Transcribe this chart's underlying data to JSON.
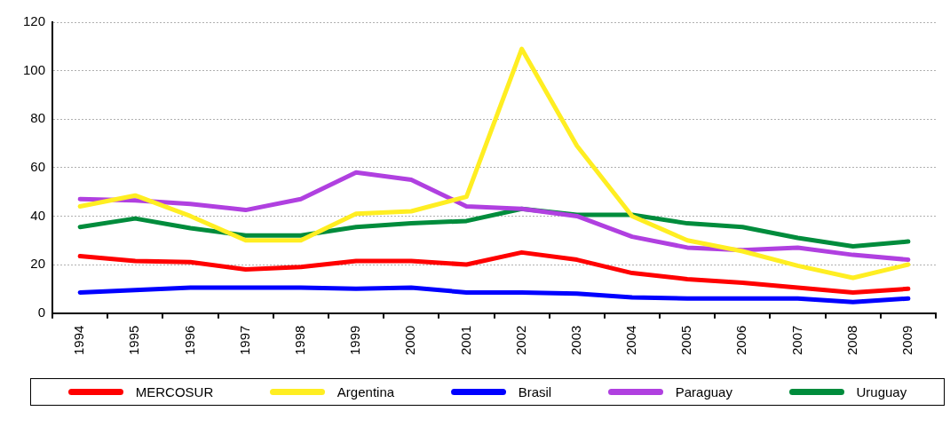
{
  "chart_data": {
    "type": "line",
    "categories": [
      "1994",
      "1995",
      "1996",
      "1997",
      "1998",
      "1999",
      "2000",
      "2001",
      "2002",
      "2003",
      "2004",
      "2005",
      "2006",
      "2007",
      "2008",
      "2009"
    ],
    "series": [
      {
        "name": "MERCOSUR",
        "color": "#ff0000",
        "values": [
          23.5,
          21.5,
          21,
          18,
          19,
          21.5,
          21.5,
          20,
          25,
          22,
          16.5,
          14,
          12.5,
          10.5,
          8.5,
          10
        ]
      },
      {
        "name": "Argentina",
        "color": "#ffee22",
        "values": [
          44,
          48.5,
          40,
          30,
          30,
          41,
          42,
          48,
          109,
          69,
          40,
          30,
          25.5,
          19.5,
          14.5,
          20
        ]
      },
      {
        "name": "Brasil",
        "color": "#0000ff",
        "values": [
          8.5,
          9.5,
          10.5,
          10.5,
          10.5,
          10,
          10.5,
          8.5,
          8.5,
          8,
          6.5,
          6,
          6,
          6,
          4.5,
          6
        ]
      },
      {
        "name": "Paraguay",
        "color": "#b040e0",
        "values": [
          47,
          46.5,
          45,
          42.5,
          47,
          58,
          55,
          44,
          43,
          40,
          31.5,
          27,
          26,
          27,
          24,
          22
        ]
      },
      {
        "name": "Uruguay",
        "color": "#008c3c",
        "values": [
          35.5,
          39,
          35,
          32,
          32,
          35.5,
          37,
          38,
          43,
          40.5,
          40.5,
          37,
          35.5,
          31,
          27.5,
          29.5
        ]
      }
    ],
    "ylim": [
      0,
      120
    ],
    "yticks": [
      0,
      20,
      40,
      60,
      80,
      100,
      120
    ],
    "grid": "y",
    "legend": "bottom",
    "marker": "none",
    "line_style": "solid"
  }
}
